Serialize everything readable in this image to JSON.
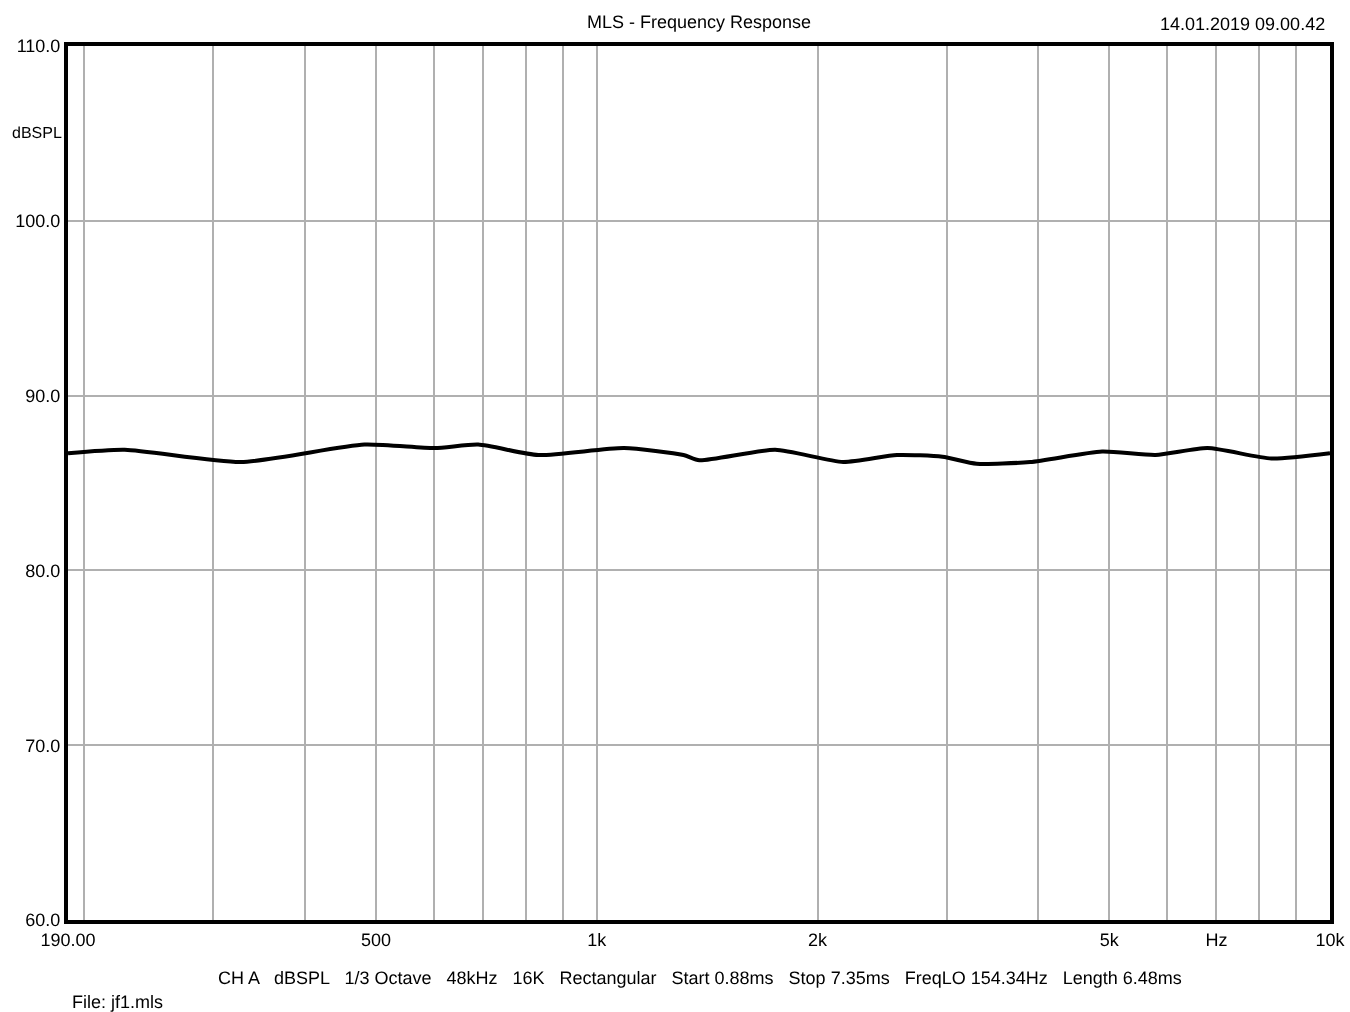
{
  "chart_data": {
    "type": "line",
    "title": "MLS - Frequency Response",
    "ylabel": "dBSPL",
    "annotations": [
      "14.01.2019 09.00.42",
      "CH A   dBSPL   1/3 Octave   48kHz   16K   Rectangular   Start 0.88ms   Stop 7.35ms   FreqLO 154.34Hz   Length 6.48ms",
      "File: jf1.mls"
    ],
    "log": "x",
    "grid": true,
    "marker": "none",
    "line_style": "solid",
    "xlim": [
      190,
      10000
    ],
    "xticks": [
      {
        "value": 190,
        "label": "190.00"
      },
      {
        "value": 200,
        "label": null
      },
      {
        "value": 300,
        "label": null
      },
      {
        "value": 400,
        "label": null
      },
      {
        "value": 500,
        "label": "500"
      },
      {
        "value": 600,
        "label": null
      },
      {
        "value": 700,
        "label": null
      },
      {
        "value": 800,
        "label": null
      },
      {
        "value": 900,
        "label": null
      },
      {
        "value": 1000,
        "label": "1k"
      },
      {
        "value": 2000,
        "label": "2k"
      },
      {
        "value": 3000,
        "label": null
      },
      {
        "value": 4000,
        "label": null
      },
      {
        "value": 5000,
        "label": "5k"
      },
      {
        "value": 6000,
        "label": null
      },
      {
        "value": 7000,
        "label": "Hz"
      },
      {
        "value": 8000,
        "label": null
      },
      {
        "value": 9000,
        "label": null
      },
      {
        "value": 10000,
        "label": "10k"
      }
    ],
    "ylim": [
      60,
      110
    ],
    "yticks": [
      {
        "value": 60,
        "label": "60.0"
      },
      {
        "value": 70,
        "label": "70.0"
      },
      {
        "value": 80,
        "label": "80.0"
      },
      {
        "value": 90,
        "label": "90.0"
      },
      {
        "value": 100,
        "label": "100.0"
      },
      {
        "value": 110,
        "label": "110.0"
      }
    ],
    "x": [
      190,
      227,
      327,
      482,
      601,
      689,
      832,
      1089,
      1313,
      1380,
      1751,
      2168,
      2567,
      2961,
      3296,
      3900,
      4888,
      5782,
      6806,
      8318,
      10000
    ],
    "series": [
      {
        "color": "#000000",
        "values": [
          86.7,
          86.9,
          86.2,
          87.2,
          87.0,
          87.2,
          86.6,
          87.0,
          86.6,
          86.3,
          86.9,
          86.2,
          86.6,
          86.5,
          86.1,
          86.2,
          86.8,
          86.6,
          87.0,
          86.4,
          86.7
        ]
      }
    ]
  }
}
